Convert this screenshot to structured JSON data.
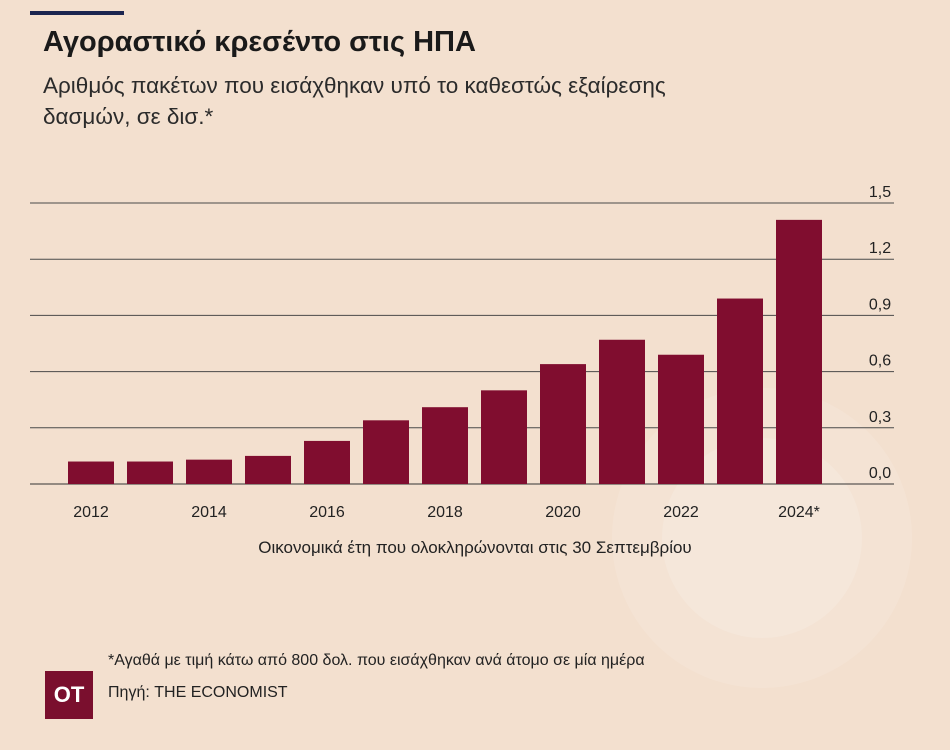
{
  "header": {
    "title": "Αγοραστικό κρεσέντο στις ΗΠΑ",
    "subtitle": "Αριθμός πακέτων που εισάχθηκαν υπό το καθεστώς εξαίρεσης δασμών, σε δισ.*"
  },
  "chart_data": {
    "type": "bar",
    "categories": [
      "2012",
      "2013",
      "2014",
      "2015",
      "2016",
      "2017",
      "2018",
      "2019",
      "2020",
      "2021",
      "2022",
      "2023",
      "2024*"
    ],
    "x_tick_labels": [
      "2012",
      "2014",
      "2016",
      "2018",
      "2020",
      "2022",
      "2024*"
    ],
    "values": [
      0.12,
      0.12,
      0.13,
      0.15,
      0.23,
      0.34,
      0.41,
      0.5,
      0.64,
      0.77,
      0.69,
      0.99,
      1.41
    ],
    "y_ticks": [
      "0,0",
      "0,3",
      "0,6",
      "0,9",
      "1,2",
      "1,5"
    ],
    "y_tick_values": [
      0,
      0.3,
      0.6,
      0.9,
      1.2,
      1.5
    ],
    "ylim": [
      0,
      1.5
    ],
    "xlabel": "Οικονομικά έτη που ολοκληρώνονται στις 30 Σεπτεμβρίου",
    "ylabel": "",
    "grid": true,
    "y_axis_position": "right",
    "bar_color": "#800d2f"
  },
  "footer": {
    "footnote": "*Αγαθά με τιμή κάτω από 800 δολ. που εισάχθηκαν ανά άτομο σε μία ημέρα",
    "source": "Πηγή: THE ECONOMIST",
    "logo_text": "OT"
  }
}
